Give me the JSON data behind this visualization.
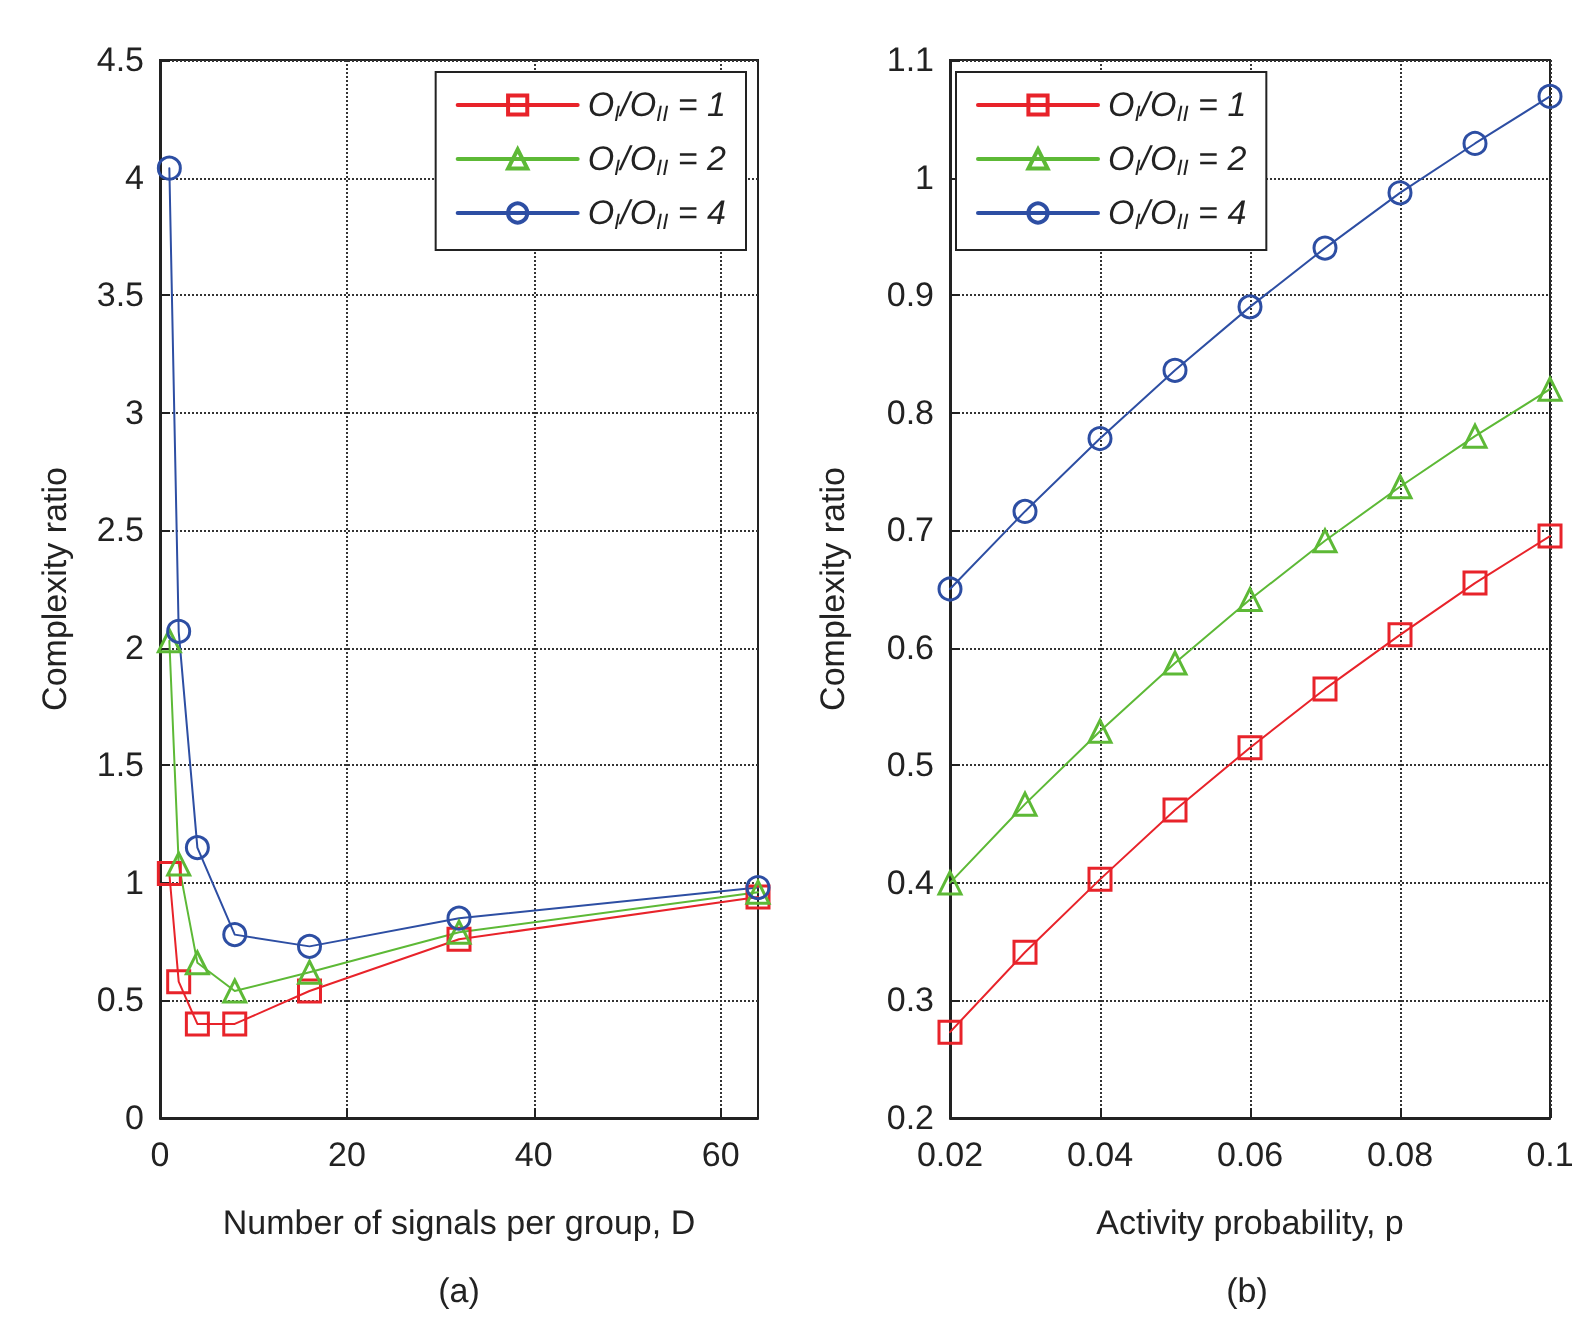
{
  "chart_data": [
    {
      "type": "line",
      "xlabel": "Number of signals per group, D",
      "ylabel": "Complexity ratio",
      "annotations": [
        "(a)"
      ],
      "x": [
        1,
        2,
        4,
        8,
        16,
        32,
        64
      ],
      "series": [
        {
          "name": "O$_{I}$/O$_{II}$ = 1",
          "color": "#e8232a",
          "marker": "square",
          "values": [
            1.04,
            0.58,
            0.4,
            0.4,
            0.54,
            0.76,
            0.94
          ]
        },
        {
          "name": "O$_{I}$/O$_{II}$ = 2",
          "color": "#5db936",
          "marker": "triangle",
          "values": [
            2.03,
            1.08,
            0.66,
            0.54,
            0.62,
            0.79,
            0.96
          ]
        },
        {
          "name": "O$_{I}$/O$_{II}$ = 4",
          "color": "#2d4ea3",
          "marker": "circle",
          "values": [
            4.04,
            2.07,
            1.15,
            0.78,
            0.73,
            0.85,
            0.98
          ]
        }
      ],
      "xlim": [
        0,
        64
      ],
      "xticks": [
        0,
        20,
        40,
        60
      ],
      "ylim": [
        0,
        4.5
      ],
      "yticks": [
        0,
        0.5,
        1,
        1.5,
        2,
        2.5,
        3,
        3.5,
        4,
        4.5
      ],
      "grid": true,
      "legend": "top right",
      "line_style": "solid"
    },
    {
      "type": "line",
      "xlabel": "Activity probability, p",
      "ylabel": "Complexity ratio",
      "annotations": [
        "(b)"
      ],
      "x": [
        0.02,
        0.03,
        0.04,
        0.05,
        0.06,
        0.07,
        0.08,
        0.09,
        0.1
      ],
      "series": [
        {
          "name": "O$_{I}$/O$_{II}$ = 1",
          "color": "#e8232a",
          "marker": "square",
          "values": [
            0.273,
            0.341,
            0.403,
            0.462,
            0.515,
            0.565,
            0.611,
            0.655,
            0.695
          ]
        },
        {
          "name": "O$_{I}$/O$_{II}$ = 2",
          "color": "#5db936",
          "marker": "triangle",
          "values": [
            0.4,
            0.467,
            0.529,
            0.587,
            0.641,
            0.691,
            0.737,
            0.78,
            0.82
          ]
        },
        {
          "name": "O$_{I}$/O$_{II}$ = 4",
          "color": "#2d4ea3",
          "marker": "circle",
          "values": [
            0.65,
            0.716,
            0.778,
            0.836,
            0.89,
            0.94,
            0.987,
            1.029,
            1.069
          ]
        }
      ],
      "xlim": [
        0.02,
        0.1
      ],
      "xticks": [
        0.02,
        0.04,
        0.06,
        0.08,
        0.1
      ],
      "ylim": [
        0.2,
        1.1
      ],
      "yticks": [
        0.2,
        0.3,
        0.4,
        0.5,
        0.6,
        0.7,
        0.8,
        0.9,
        1,
        1.1
      ],
      "grid": true,
      "legend": "top left",
      "line_style": "solid"
    }
  ]
}
